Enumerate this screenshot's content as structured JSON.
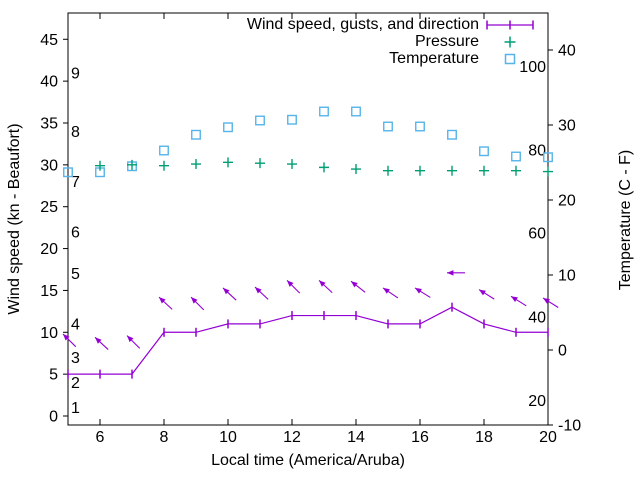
{
  "chart_data": {
    "type": "line",
    "title": "",
    "xlabel": "Local time (America/Aruba)",
    "x_hours": [
      5,
      6,
      7,
      8,
      9,
      10,
      11,
      12,
      13,
      14,
      15,
      16,
      17,
      18,
      19,
      20
    ],
    "x_ticks": [
      6,
      8,
      10,
      12,
      14,
      16,
      18,
      20
    ],
    "x_range": [
      5,
      20
    ],
    "left_axis": {
      "label": "Wind speed (kn - Beaufort)",
      "ticks": [
        0,
        5,
        10,
        15,
        20,
        25,
        30,
        35,
        40,
        45
      ],
      "range_kn": [
        -1.1,
        48.1
      ],
      "inner_scale_name": "Beaufort",
      "inner_labels": [
        {
          "text": "1",
          "kn": 1
        },
        {
          "text": "2",
          "kn": 4
        },
        {
          "text": "3",
          "kn": 7
        },
        {
          "text": "4",
          "kn": 11
        },
        {
          "text": "5",
          "kn": 17
        },
        {
          "text": "6",
          "kn": 22
        },
        {
          "text": "7",
          "kn": 28
        },
        {
          "text": "8",
          "kn": 34
        },
        {
          "text": "9",
          "kn": 41
        }
      ]
    },
    "right_axis": {
      "label": "Temperature (C - F)",
      "ticks": [
        -10,
        0,
        10,
        20,
        30,
        40
      ],
      "range_c": [
        -10,
        45
      ],
      "inner_scale_name": "Fahrenheit",
      "inner_labels": [
        {
          "text": "20",
          "c": -6.7
        },
        {
          "text": "40",
          "c": 4.4
        },
        {
          "text": "60",
          "c": 15.6
        },
        {
          "text": "80",
          "c": 26.7
        },
        {
          "text": "100",
          "c": 37.8
        }
      ]
    },
    "series": [
      {
        "name": "Wind speed, gusts, and direction",
        "type": "line+vectors",
        "axis": "left",
        "color": "#9400d3",
        "wind_kn": [
          5,
          5,
          5,
          10,
          10,
          11,
          11,
          12,
          12,
          12,
          11,
          11,
          13,
          11,
          10,
          10
        ],
        "gust_kn": [
          9.8,
          9.4,
          9.6,
          14.2,
          14.2,
          15.3,
          15.4,
          16.2,
          16.2,
          16.1,
          15.3,
          15.3,
          17.1,
          15.1,
          14.3,
          14.1
        ],
        "arrow_angle_deg_above_left": [
          45,
          43,
          45,
          43,
          45,
          43,
          43,
          45,
          43,
          38,
          34,
          32,
          0,
          32,
          32,
          32
        ]
      },
      {
        "name": "Pressure",
        "type": "points",
        "marker": "plus",
        "axis": "left",
        "color": "#009e73",
        "values_kn_axis": [
          null,
          29.9,
          30.0,
          29.9,
          30.1,
          30.3,
          30.2,
          30.1,
          29.7,
          29.5,
          29.3,
          29.3,
          29.3,
          29.3,
          29.3,
          29.2
        ]
      },
      {
        "name": "Temperature",
        "type": "points",
        "marker": "open-square",
        "axis": "right",
        "color": "#56b4e9",
        "values_c": [
          23.7,
          23.7,
          24.5,
          26.6,
          28.7,
          29.7,
          30.6,
          30.7,
          31.8,
          31.8,
          29.8,
          29.8,
          28.7,
          26.5,
          25.8,
          25.7
        ]
      }
    ],
    "legend": {
      "position": "top-right-inside",
      "entries": [
        "Wind speed, gusts, and direction",
        "Pressure",
        "Temperature"
      ]
    },
    "grid": false,
    "background": "#ffffff",
    "axis_color": "#000000"
  }
}
